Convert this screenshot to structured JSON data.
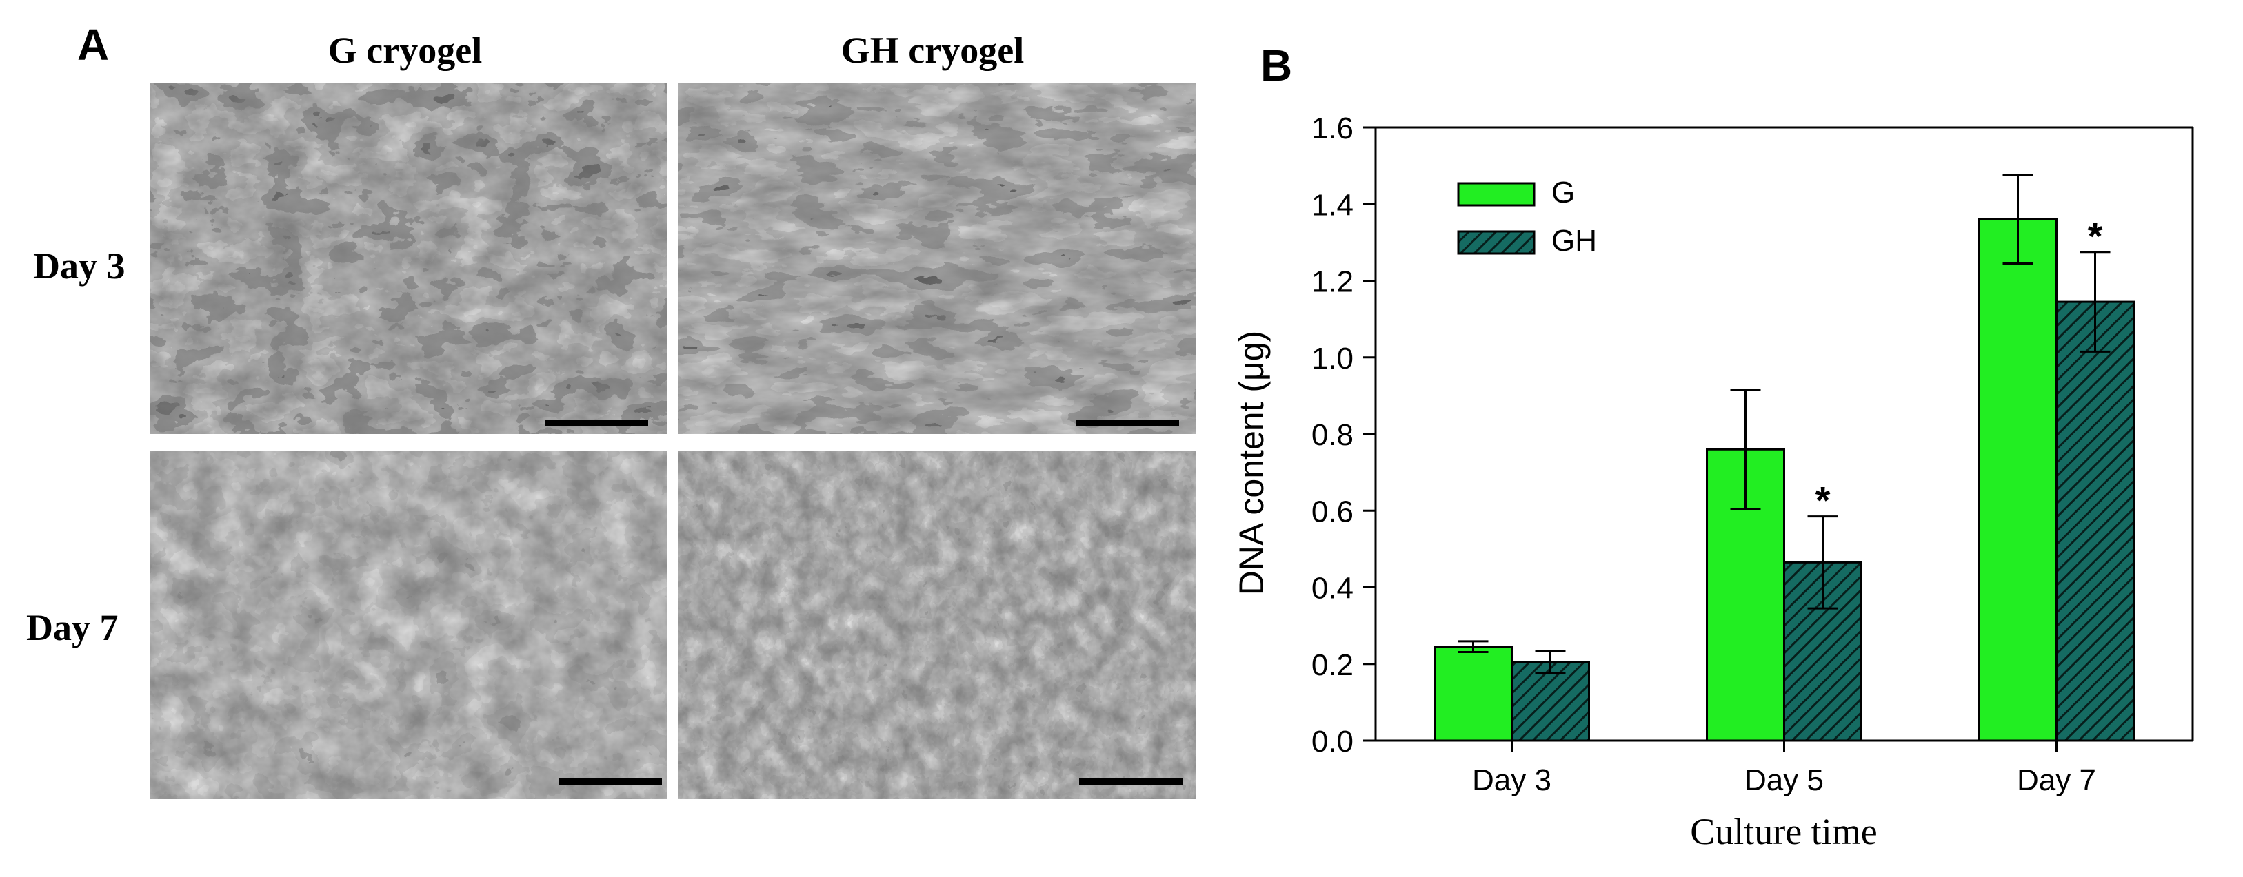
{
  "panel_a": {
    "letter": "A",
    "columns": [
      "G cryogel",
      "GH cryogel"
    ],
    "rows": [
      "Day 3",
      "Day 7"
    ]
  },
  "panel_b": {
    "letter": "B"
  },
  "colors": {
    "G": "#22ee22",
    "GH": "#156b62",
    "axis": "#000000"
  },
  "chart_data": {
    "type": "bar",
    "categories": [
      "Day 3",
      "Day 5",
      "Day 7"
    ],
    "series": [
      {
        "name": "G",
        "values": [
          0.245,
          0.76,
          1.36
        ],
        "errors": [
          0.014,
          0.155,
          0.115
        ],
        "significant": [
          false,
          false,
          false
        ]
      },
      {
        "name": "GH",
        "values": [
          0.205,
          0.465,
          1.145
        ],
        "errors": [
          0.028,
          0.12,
          0.13
        ],
        "significant": [
          false,
          true,
          true
        ]
      }
    ],
    "title": "",
    "xlabel": "Culture time",
    "ylabel": "DNA content (μg)",
    "ylim": [
      0,
      1.6
    ],
    "yticks": [
      "0.0",
      "0.2",
      "0.4",
      "0.6",
      "0.8",
      "1.0",
      "1.2",
      "1.4",
      "1.6"
    ],
    "significance_marker": "*",
    "legend": {
      "placement": "top-left",
      "entries": [
        "G",
        "GH"
      ]
    },
    "grid": false
  }
}
